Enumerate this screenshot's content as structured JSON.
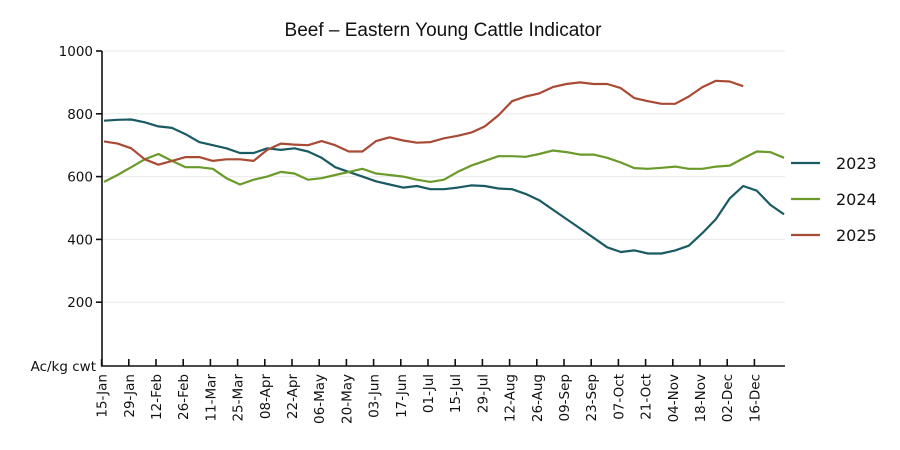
{
  "chart_data": {
    "type": "line",
    "title": "Beef – Eastern Young Cattle Indicator",
    "xlabel": "",
    "ylabel": "Ac/kg cwt",
    "ylim": [
      0,
      1000
    ],
    "yticks": [
      200,
      400,
      600,
      800,
      1000
    ],
    "ytick_labels": [
      "200",
      "400",
      "600",
      "800",
      "1000"
    ],
    "y_unit_label": "Ac/kg cwt",
    "x_tick_labels": [
      "15-Jan",
      "29-Jan",
      "12-Feb",
      "26-Feb",
      "11-Mar",
      "25-Mar",
      "08-Apr",
      "22-Apr",
      "06-May",
      "20-May",
      "03-Jun",
      "17-Jun",
      "01-Jul",
      "15-Jul",
      "29-Jul",
      "12-Aug",
      "26-Aug",
      "09-Sep",
      "23-Sep",
      "07-Oct",
      "21-Oct",
      "04-Nov",
      "18-Nov",
      "02-Dec",
      "16-Dec"
    ],
    "x_tick_week_index": [
      1,
      3,
      5,
      7,
      9,
      11,
      13,
      15,
      17,
      19,
      21,
      23,
      25,
      27,
      29,
      31,
      33,
      35,
      37,
      39,
      41,
      43,
      45,
      47,
      49
    ],
    "x_unit": "week index (weekly observations)",
    "grid": "horizontal",
    "legend_position": "right",
    "series": [
      {
        "name": "2023",
        "color": "#1a5a63",
        "values": [
          778,
          781,
          782,
          773,
          760,
          755,
          735,
          710,
          700,
          690,
          675,
          675,
          690,
          685,
          690,
          680,
          660,
          630,
          615,
          600,
          585,
          575,
          565,
          570,
          560,
          560,
          565,
          572,
          570,
          562,
          560,
          545,
          525,
          495,
          465,
          435,
          405,
          375,
          360,
          365,
          355,
          355,
          365,
          380,
          420,
          465,
          530,
          570,
          555,
          510,
          480
        ]
      },
      {
        "name": "2024",
        "color": "#6a9a2a",
        "values": [
          583,
          605,
          630,
          655,
          672,
          650,
          630,
          630,
          625,
          595,
          575,
          590,
          600,
          615,
          610,
          590,
          595,
          605,
          615,
          625,
          610,
          605,
          600,
          590,
          583,
          590,
          615,
          635,
          650,
          665,
          665,
          663,
          672,
          683,
          678,
          670,
          670,
          660,
          645,
          627,
          625,
          628,
          632,
          625,
          625,
          632,
          635,
          658,
          680,
          678,
          660
        ]
      },
      {
        "name": "2025",
        "color": "#a94a35",
        "values": [
          712,
          705,
          690,
          655,
          638,
          650,
          662,
          662,
          650,
          655,
          655,
          650,
          685,
          705,
          702,
          700,
          713,
          700,
          680,
          680,
          713,
          725,
          715,
          708,
          710,
          722,
          730,
          740,
          760,
          795,
          840,
          855,
          865,
          885,
          895,
          900,
          895,
          895,
          882,
          850,
          840,
          832,
          832,
          855,
          885,
          905,
          903,
          888
        ]
      }
    ]
  }
}
